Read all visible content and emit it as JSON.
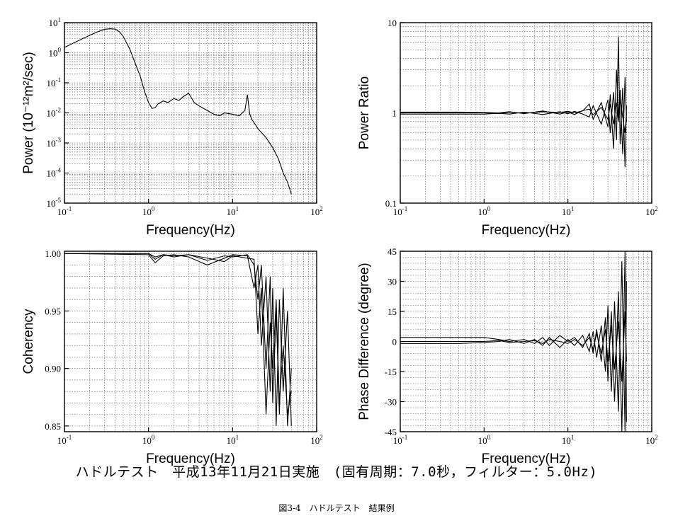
{
  "caption": "ハドルテスト　平成13年11月21日実施　(固有周期：7.0秒，フィルター：5.0Hz)",
  "figure_caption": "図3-4　ハドルテスト　結果例",
  "chart_data": [
    {
      "type": "line",
      "xlabel": "Frequency(Hz)",
      "ylabel": "Power (10⁻¹²m²/sec)",
      "xscale": "log",
      "yscale": "log",
      "xlim": [
        0.1,
        100
      ],
      "ylim": [
        1e-05,
        10
      ],
      "x_ticks": [
        0.1,
        1,
        10,
        100
      ],
      "x_tick_labels": [
        {
          "b": "10",
          "e": "-1"
        },
        {
          "b": "10",
          "e": "0"
        },
        {
          "b": "10",
          "e": "1"
        },
        {
          "b": "10",
          "e": "2"
        }
      ],
      "y_ticks": [
        1e-05,
        0.0001,
        0.001,
        0.01,
        0.1,
        1,
        10
      ],
      "y_tick_labels": [
        {
          "b": "10",
          "e": "-5"
        },
        {
          "b": "10",
          "e": "-4"
        },
        {
          "b": "10",
          "e": "-3"
        },
        {
          "b": "10",
          "e": "-2"
        },
        {
          "b": "10",
          "e": "-1"
        },
        {
          "b": "10",
          "e": "0"
        },
        {
          "b": "10",
          "e": "1"
        }
      ],
      "grid": true,
      "series": [
        {
          "x": [
            0.1,
            0.15,
            0.2,
            0.25,
            0.3,
            0.35,
            0.4,
            0.45,
            0.5,
            0.6,
            0.7,
            0.8,
            0.9,
            1.0,
            1.1,
            1.2,
            1.3,
            1.5,
            1.7,
            2.0,
            2.3,
            2.6,
            3.0,
            3.5,
            4.0,
            5.0,
            6.0,
            7.0,
            8.0,
            10,
            12,
            14,
            15,
            16,
            17,
            20,
            25,
            30,
            35,
            40,
            45,
            50
          ],
          "y": [
            1.5,
            2.6,
            3.8,
            5.0,
            6.0,
            6.3,
            6.1,
            5.0,
            3.5,
            1.3,
            0.42,
            0.16,
            0.05,
            0.022,
            0.014,
            0.015,
            0.02,
            0.025,
            0.022,
            0.03,
            0.026,
            0.035,
            0.045,
            0.022,
            0.017,
            0.012,
            0.009,
            0.008,
            0.01,
            0.009,
            0.008,
            0.012,
            0.04,
            0.009,
            0.006,
            0.003,
            0.0015,
            0.0007,
            0.0003,
            0.0001,
            5e-05,
            2e-05
          ]
        }
      ]
    },
    {
      "type": "line",
      "xlabel": "Frequency(Hz)",
      "ylabel": "Power Ratio",
      "xscale": "log",
      "yscale": "log",
      "xlim": [
        0.1,
        100
      ],
      "ylim": [
        0.1,
        10
      ],
      "x_ticks": [
        0.1,
        1,
        10,
        100
      ],
      "x_tick_labels": [
        {
          "b": "10",
          "e": "-1"
        },
        {
          "b": "10",
          "e": "0"
        },
        {
          "b": "10",
          "e": "1"
        },
        {
          "b": "10",
          "e": "2"
        }
      ],
      "y_ticks": [
        0.1,
        1,
        10
      ],
      "y_tick_labels": [
        {
          "b": "0.1",
          "e": ""
        },
        {
          "b": "1",
          "e": ""
        },
        {
          "b": "10",
          "e": ""
        }
      ],
      "grid": true,
      "series": [
        {
          "x": [
            0.1,
            0.5,
            1,
            1.5,
            2,
            3,
            5,
            8,
            10,
            12,
            15,
            18,
            20,
            25,
            30,
            32,
            35,
            38,
            40,
            42,
            45,
            48,
            50
          ],
          "y": [
            1.0,
            1.0,
            1.0,
            0.98,
            1.02,
            0.99,
            1.03,
            1.01,
            1.04,
            1.0,
            1.05,
            1.25,
            0.85,
            1.3,
            0.7,
            1.6,
            0.4,
            3.0,
            0.9,
            1.8,
            0.35,
            2.5,
            0.8
          ]
        },
        {
          "x": [
            0.1,
            0.5,
            1,
            1.5,
            2,
            3,
            5,
            8,
            10,
            12,
            15,
            18,
            20,
            25,
            30,
            32,
            35,
            38,
            40,
            42,
            45,
            48,
            50
          ],
          "y": [
            0.97,
            0.97,
            0.97,
            0.99,
            0.97,
            1.02,
            0.96,
            1.03,
            0.98,
            1.04,
            0.97,
            0.9,
            1.2,
            0.75,
            1.4,
            0.6,
            1.7,
            0.5,
            7.0,
            0.45,
            1.9,
            0.25,
            1.2
          ]
        },
        {
          "x": [
            0.1,
            0.5,
            1,
            1.5,
            2,
            3,
            5,
            8,
            10,
            12,
            15,
            18,
            20,
            25,
            30,
            32,
            35,
            38,
            40,
            42,
            45,
            48,
            50
          ],
          "y": [
            1.02,
            1.02,
            1.01,
            1.0,
            1.03,
            0.98,
            1.05,
            0.97,
            1.02,
            0.96,
            1.06,
            1.1,
            0.95,
            1.15,
            0.85,
            1.25,
            0.75,
            1.3,
            0.8,
            1.45,
            0.9,
            0.6,
            1.0
          ]
        }
      ]
    },
    {
      "type": "line",
      "xlabel": "Frequency(Hz)",
      "ylabel": "Coherency",
      "xscale": "log",
      "yscale": "linear",
      "xlim": [
        0.1,
        100
      ],
      "ylim": [
        0.845,
        1.002
      ],
      "x_ticks": [
        0.1,
        1,
        10,
        100
      ],
      "x_tick_labels": [
        {
          "b": "10",
          "e": "-1"
        },
        {
          "b": "10",
          "e": "0"
        },
        {
          "b": "10",
          "e": "1"
        },
        {
          "b": "10",
          "e": "2"
        }
      ],
      "y_ticks": [
        0.85,
        0.9,
        0.95,
        1.0
      ],
      "y_tick_labels": [
        {
          "b": "0.85",
          "e": ""
        },
        {
          "b": "0.90",
          "e": ""
        },
        {
          "b": "0.95",
          "e": ""
        },
        {
          "b": "1.00",
          "e": ""
        }
      ],
      "grid": true,
      "series": [
        {
          "x": [
            0.1,
            1,
            1.2,
            1.5,
            2,
            3,
            5,
            8,
            10,
            15,
            18,
            20,
            22,
            25,
            28,
            30,
            33,
            36,
            40,
            45,
            50
          ],
          "y": [
            1.0,
            1.0,
            0.995,
            0.999,
            0.998,
            0.999,
            0.994,
            0.998,
            0.997,
            0.999,
            0.99,
            0.96,
            0.99,
            0.9,
            0.98,
            0.87,
            0.95,
            0.86,
            0.97,
            0.85,
            0.9
          ]
        },
        {
          "x": [
            0.1,
            1,
            1.2,
            1.5,
            2,
            3,
            5,
            8,
            10,
            15,
            18,
            20,
            22,
            25,
            28,
            30,
            33,
            36,
            40,
            45,
            50
          ],
          "y": [
            1.0,
            0.999,
            0.992,
            0.998,
            0.999,
            0.997,
            0.99,
            0.996,
            0.999,
            0.998,
            0.97,
            0.99,
            0.92,
            0.98,
            0.88,
            0.97,
            0.85,
            0.96,
            0.88,
            0.95,
            0.85
          ]
        },
        {
          "x": [
            0.1,
            1,
            1.2,
            1.5,
            2,
            3,
            5,
            8,
            10,
            15,
            18,
            20,
            22,
            25,
            28,
            30,
            33,
            36,
            40,
            45,
            50
          ],
          "y": [
            1.0,
            1.0,
            0.997,
            0.999,
            0.997,
            0.999,
            0.996,
            0.993,
            0.998,
            0.996,
            0.995,
            0.93,
            0.97,
            0.86,
            0.94,
            0.9,
            0.96,
            0.87,
            0.92,
            0.86,
            0.88
          ]
        }
      ]
    },
    {
      "type": "line",
      "xlabel": "Frequency(Hz)",
      "ylabel": "Phase Difference (degree)",
      "xscale": "log",
      "yscale": "linear",
      "xlim": [
        0.1,
        100
      ],
      "ylim": [
        -45,
        45
      ],
      "x_ticks": [
        0.1,
        1,
        10,
        100
      ],
      "x_tick_labels": [
        {
          "b": "10",
          "e": "-1"
        },
        {
          "b": "10",
          "e": "0"
        },
        {
          "b": "10",
          "e": "1"
        },
        {
          "b": "10",
          "e": "2"
        }
      ],
      "y_ticks": [
        -45,
        -30,
        -15,
        0,
        15,
        30,
        45
      ],
      "y_tick_labels": [
        {
          "b": "-45",
          "e": ""
        },
        {
          "b": "-30",
          "e": ""
        },
        {
          "b": "-15",
          "e": ""
        },
        {
          "b": "0",
          "e": ""
        },
        {
          "b": "15",
          "e": ""
        },
        {
          "b": "30",
          "e": ""
        },
        {
          "b": "45",
          "e": ""
        }
      ],
      "grid": true,
      "series": [
        {
          "x": [
            0.1,
            0.5,
            1,
            1.5,
            2,
            3,
            4,
            5,
            6,
            8,
            10,
            12,
            15,
            18,
            20,
            22,
            25,
            28,
            30,
            33,
            36,
            40,
            44,
            48,
            50
          ],
          "y": [
            2,
            2,
            2,
            1,
            0,
            1,
            -1,
            2,
            -2,
            3,
            0,
            2,
            -3,
            4,
            -6,
            6,
            -10,
            12,
            -20,
            15,
            -30,
            25,
            -45,
            45,
            -40
          ]
        },
        {
          "x": [
            0.1,
            0.5,
            1,
            1.5,
            2,
            3,
            4,
            5,
            6,
            8,
            10,
            12,
            15,
            18,
            20,
            22,
            25,
            28,
            30,
            33,
            36,
            40,
            44,
            48,
            50
          ],
          "y": [
            -1,
            -1,
            -0.5,
            0,
            1,
            -1,
            1,
            -2,
            2,
            -3,
            1,
            -2,
            3,
            -5,
            5,
            -8,
            8,
            -15,
            18,
            -25,
            20,
            -35,
            40,
            -45,
            30
          ]
        },
        {
          "x": [
            0.1,
            0.5,
            1,
            1.5,
            2,
            3,
            4,
            5,
            6,
            8,
            10,
            12,
            15,
            18,
            20,
            22,
            25,
            28,
            30,
            33,
            36,
            40,
            44,
            48,
            50
          ],
          "y": [
            0,
            0,
            0,
            0.5,
            -0.5,
            0,
            0.5,
            -1,
            1,
            0,
            -1,
            1,
            -2,
            2,
            -4,
            4,
            -6,
            6,
            -10,
            8,
            -14,
            10,
            -20,
            15,
            -10
          ]
        }
      ]
    }
  ]
}
